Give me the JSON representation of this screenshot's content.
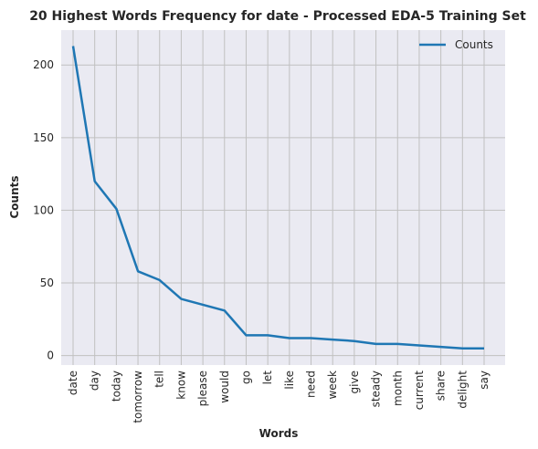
{
  "chart_data": {
    "type": "line",
    "title": "20 Highest Words Frequency for date - Processed EDA-5 Training Set",
    "xlabel": "Words",
    "ylabel": "Counts",
    "categories": [
      "date",
      "day",
      "today",
      "tomorrow",
      "tell",
      "know",
      "please",
      "would",
      "go",
      "let",
      "like",
      "need",
      "week",
      "give",
      "steady",
      "month",
      "current",
      "share",
      "delight",
      "say"
    ],
    "series": [
      {
        "name": "Counts",
        "values": [
          213,
          120,
          101,
          58,
          52,
          39,
          35,
          31,
          14,
          14,
          12,
          12,
          11,
          10,
          8,
          8,
          7,
          6,
          5,
          5
        ],
        "color": "#1f77b4"
      }
    ],
    "yticks": [
      0,
      50,
      100,
      150,
      200
    ],
    "ylim": [
      -6.5,
      224
    ],
    "grid": true,
    "legend": "top-right",
    "background": "#eaeaf2",
    "grid_color": "#c0c0c0"
  }
}
